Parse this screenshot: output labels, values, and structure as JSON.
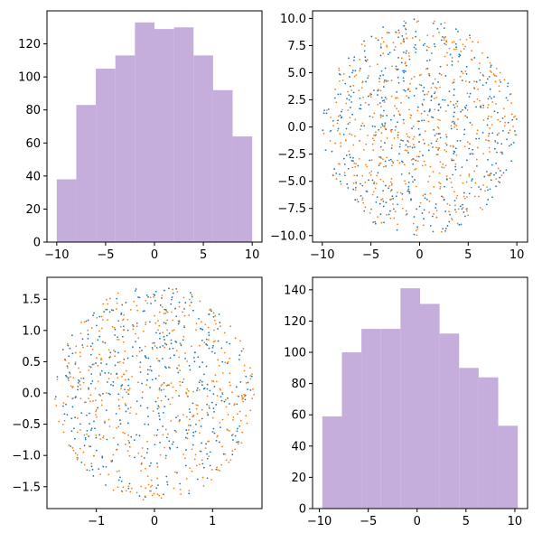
{
  "colors": {
    "series_a": "#1f77b4",
    "series_b": "#ff7f0e",
    "hist": "#c5aedb"
  },
  "chart_data": [
    {
      "id": "top-left",
      "type": "bar",
      "subtype": "histogram",
      "title": "",
      "xlabel": "",
      "ylabel": "",
      "bin_edges": [
        -10,
        -8,
        -6,
        -4,
        -2,
        0,
        2,
        4,
        6,
        8,
        10
      ],
      "values": [
        38,
        83,
        105,
        113,
        133,
        129,
        130,
        113,
        92,
        64
      ],
      "xlim": [
        -11,
        11
      ],
      "ylim": [
        0,
        140
      ],
      "xticks": [
        -10,
        -5,
        0,
        5,
        10
      ],
      "yticks": [
        0,
        20,
        40,
        60,
        80,
        100,
        120
      ]
    },
    {
      "id": "top-right",
      "type": "scatter",
      "title": "",
      "xlabel": "",
      "ylabel": "",
      "shape": "disc",
      "radius": 10,
      "points_per_series": 500,
      "seed_a": 11,
      "seed_b": 29,
      "xlim": [
        -11,
        11.1
      ],
      "ylim": [
        -10.6,
        10.7
      ],
      "xticks": [
        -10,
        -5,
        0,
        5,
        10
      ],
      "yticks": [
        -10.0,
        -7.5,
        -5.0,
        -2.5,
        0.0,
        2.5,
        5.0,
        7.5,
        10.0
      ],
      "ytick_labels": [
        "−10.0",
        "−7.5",
        "−5.0",
        "−2.5",
        "0.0",
        "2.5",
        "5.0",
        "7.5",
        "10.0"
      ]
    },
    {
      "id": "bottom-left",
      "type": "scatter",
      "title": "",
      "xlabel": "",
      "ylabel": "",
      "shape": "disc",
      "radius": 1.72,
      "points_per_series": 450,
      "seed_a": 7,
      "seed_b": 53,
      "xlim": [
        -1.85,
        1.85
      ],
      "ylim": [
        -1.85,
        1.85
      ],
      "xticks": [
        -1,
        0,
        1
      ],
      "yticks": [
        -1.5,
        -1.0,
        -0.5,
        0.0,
        0.5,
        1.0,
        1.5
      ],
      "ytick_labels": [
        "−1.5",
        "−1.0",
        "−0.5",
        "0.0",
        "0.5",
        "1.0",
        "1.5"
      ]
    },
    {
      "id": "bottom-right",
      "type": "bar",
      "subtype": "histogram",
      "title": "",
      "xlabel": "",
      "ylabel": "",
      "bin_edges": [
        -9.7,
        -7.7,
        -5.7,
        -3.7,
        -1.7,
        0.3,
        2.3,
        4.3,
        6.3,
        8.3,
        10.3
      ],
      "values": [
        59,
        100,
        115,
        115,
        141,
        131,
        112,
        90,
        84,
        53
      ],
      "xlim": [
        -10.7,
        11.3
      ],
      "ylim": [
        0,
        148
      ],
      "xticks": [
        -10,
        -5,
        0,
        5,
        10
      ],
      "yticks": [
        0,
        20,
        40,
        60,
        80,
        100,
        120,
        140
      ]
    }
  ]
}
